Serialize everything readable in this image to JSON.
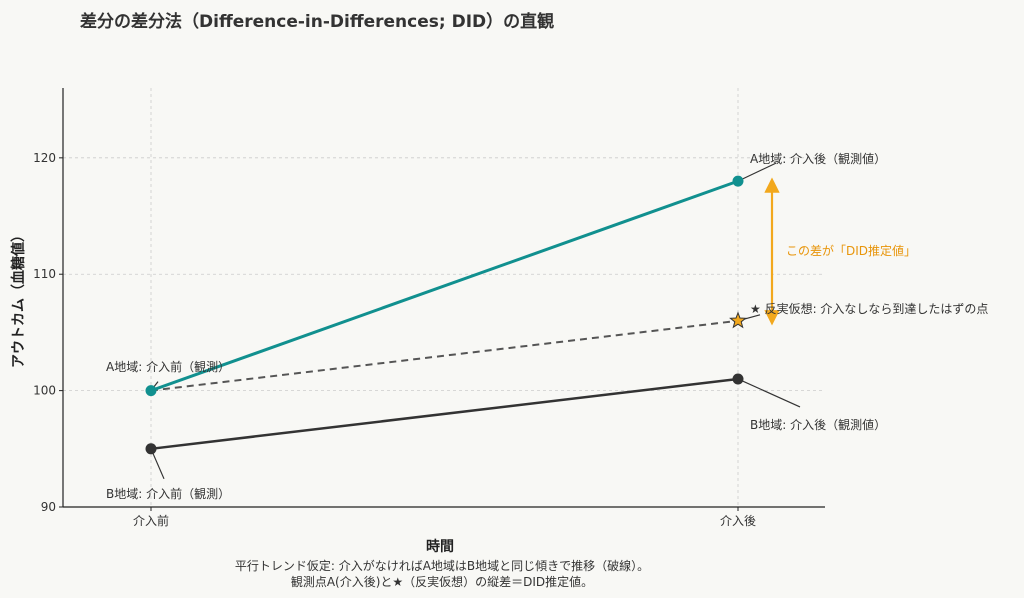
{
  "chart_data": {
    "type": "line",
    "title": "差分の差分法（Difference-in-Differences; DID）の直観",
    "xlabel": "時間",
    "ylabel": "アウトカム（血糖値）",
    "categories": [
      "介入前",
      "介入後"
    ],
    "y_ticks": [
      90,
      100,
      110,
      120
    ],
    "ylim": [
      90,
      126
    ],
    "grid": true,
    "series": [
      {
        "name": "A地域",
        "values": [
          100,
          118
        ],
        "color": "#11908f",
        "style": "solid"
      },
      {
        "name": "B地域",
        "values": [
          95,
          101
        ],
        "color": "#333333",
        "style": "solid"
      },
      {
        "name": "反実仮想",
        "values": [
          100,
          106
        ],
        "color": "#555555",
        "style": "dashed"
      }
    ],
    "counterfactual_marker": {
      "value": 106,
      "color": "#f2a81d"
    },
    "did_arrow": {
      "from": 106,
      "to": 118,
      "color": "#f2a81d"
    },
    "annotations": {
      "a_before": "A地域: 介入前（観測）",
      "b_before": "B地域: 介入前（観測）",
      "a_after": "A地域: 介入後（観測値）",
      "b_after": "B地域: 介入後（観測値）",
      "counterfactual": "★ 反実仮想: 介入なしなら到達したはずの点",
      "did": "この差が「DID推定値」"
    },
    "caption": [
      "平行トレンド仮定: 介入がなければA地域はB地域と同じ傾きで推移（破線）。",
      "観測点A(介入後)と★（反実仮想）の縦差＝DID推定値。"
    ]
  }
}
